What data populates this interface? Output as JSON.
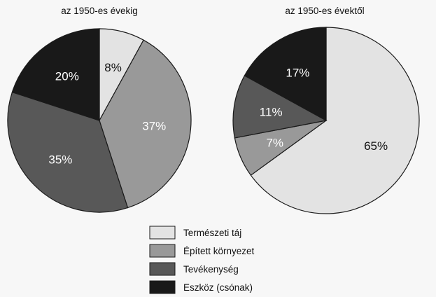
{
  "chart_data": [
    {
      "type": "pie",
      "title": "az 1950-es évekig",
      "slices": [
        {
          "name": "Természeti táj",
          "value": 8,
          "label": "8%"
        },
        {
          "name": "Épített környezet",
          "value": 37,
          "label": "37%"
        },
        {
          "name": "Tevékenység",
          "value": 35,
          "label": "35%"
        },
        {
          "name": "Eszköz (csónak)",
          "value": 20,
          "label": "20%"
        }
      ]
    },
    {
      "type": "pie",
      "title": "az 1950-es évektől",
      "slices": [
        {
          "name": "Természeti táj",
          "value": 65,
          "label": "65%"
        },
        {
          "name": "Épített környezet",
          "value": 7,
          "label": "7%"
        },
        {
          "name": "Tevékenység",
          "value": 11,
          "label": "11%"
        },
        {
          "name": "Eszköz (csónak)",
          "value": 17,
          "label": "17%"
        }
      ]
    }
  ],
  "legend": {
    "placement": "bottom-center",
    "items": [
      {
        "label": "Természeti táj",
        "color": "#e3e3e3"
      },
      {
        "label": "Épített környezet",
        "color": "#999999"
      },
      {
        "label": "Tevékenység",
        "color": "#585858"
      },
      {
        "label": "Eszköz (csónak)",
        "color": "#191919"
      }
    ]
  },
  "colors": {
    "Természeti táj": "#e3e3e3",
    "Épített környezet": "#999999",
    "Tevékenység": "#585858",
    "Eszköz (csónak)": "#191919",
    "stroke": "#1a1a1a"
  }
}
